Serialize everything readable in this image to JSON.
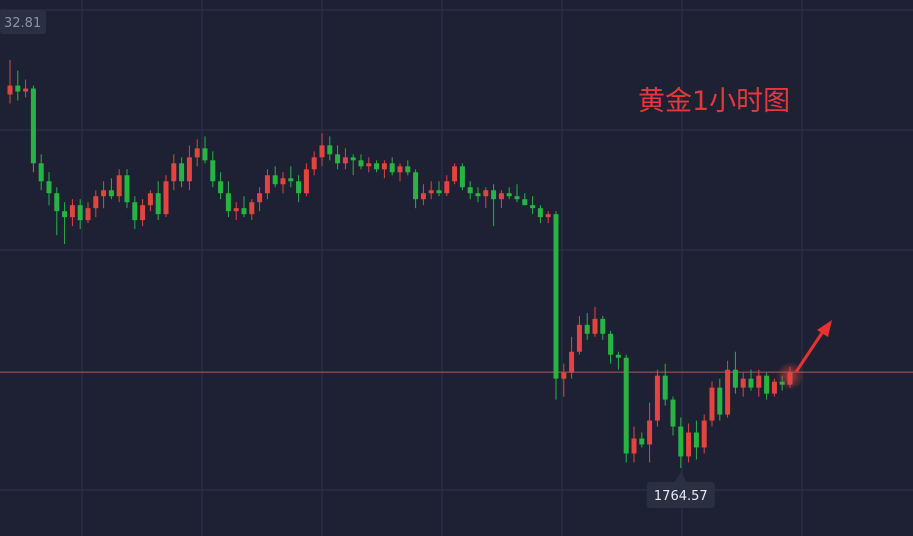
{
  "chart_data": {
    "type": "candlestick",
    "title": "黄金1小时图",
    "corner_label": "32.81",
    "low_label": "1764.57",
    "last_price": 1780.6,
    "up_color": "#e2453f",
    "down_color": "#28b443",
    "ylim": [
      1753.2,
      1842.8
    ],
    "ohlc": [
      [
        1827.0,
        1832.8,
        1825.5,
        1828.5
      ],
      [
        1828.5,
        1831.0,
        1826.0,
        1827.5
      ],
      [
        1827.5,
        1829.5,
        1826.5,
        1828.0
      ],
      [
        1828.0,
        1828.5,
        1814.0,
        1815.5
      ],
      [
        1815.5,
        1817.0,
        1811.0,
        1812.5
      ],
      [
        1812.5,
        1814.0,
        1808.5,
        1810.5
      ],
      [
        1810.5,
        1811.5,
        1803.5,
        1807.5
      ],
      [
        1807.5,
        1809.0,
        1802.0,
        1806.5
      ],
      [
        1806.5,
        1809.5,
        1805.0,
        1808.5
      ],
      [
        1808.5,
        1809.5,
        1804.5,
        1806.0
      ],
      [
        1806.0,
        1809.0,
        1805.5,
        1808.0
      ],
      [
        1808.0,
        1811.0,
        1806.5,
        1810.0
      ],
      [
        1810.0,
        1812.5,
        1808.0,
        1811.0
      ],
      [
        1811.0,
        1813.0,
        1809.5,
        1810.0
      ],
      [
        1810.0,
        1814.5,
        1809.0,
        1813.5
      ],
      [
        1813.5,
        1814.5,
        1808.0,
        1809.0
      ],
      [
        1809.0,
        1810.0,
        1804.5,
        1806.0
      ],
      [
        1806.0,
        1809.5,
        1805.0,
        1808.5
      ],
      [
        1808.5,
        1811.0,
        1807.5,
        1810.5
      ],
      [
        1810.5,
        1812.5,
        1806.0,
        1807.0
      ],
      [
        1807.0,
        1813.5,
        1806.5,
        1812.5
      ],
      [
        1812.5,
        1817.0,
        1811.0,
        1815.5
      ],
      [
        1815.5,
        1816.5,
        1811.5,
        1812.5
      ],
      [
        1812.5,
        1818.5,
        1811.0,
        1816.5
      ],
      [
        1816.5,
        1819.5,
        1815.0,
        1818.0
      ],
      [
        1818.0,
        1820.0,
        1815.5,
        1816.0
      ],
      [
        1816.0,
        1817.5,
        1811.5,
        1812.5
      ],
      [
        1812.5,
        1814.0,
        1809.5,
        1810.5
      ],
      [
        1810.5,
        1812.5,
        1806.5,
        1807.5
      ],
      [
        1807.5,
        1809.0,
        1806.0,
        1808.0
      ],
      [
        1808.0,
        1810.0,
        1806.5,
        1807.0
      ],
      [
        1807.0,
        1809.5,
        1806.0,
        1809.0
      ],
      [
        1809.0,
        1811.5,
        1807.5,
        1810.5
      ],
      [
        1810.5,
        1814.5,
        1809.5,
        1813.5
      ],
      [
        1813.5,
        1815.0,
        1811.5,
        1812.0
      ],
      [
        1812.0,
        1814.0,
        1810.5,
        1813.0
      ],
      [
        1813.0,
        1815.0,
        1811.5,
        1812.5
      ],
      [
        1812.5,
        1813.5,
        1809.0,
        1810.5
      ],
      [
        1810.5,
        1815.5,
        1810.0,
        1814.5
      ],
      [
        1814.5,
        1817.5,
        1813.5,
        1816.5
      ],
      [
        1816.5,
        1820.5,
        1815.0,
        1818.5
      ],
      [
        1818.5,
        1820.0,
        1816.0,
        1817.0
      ],
      [
        1817.0,
        1818.5,
        1814.5,
        1815.5
      ],
      [
        1815.5,
        1818.0,
        1814.5,
        1816.5
      ],
      [
        1816.5,
        1817.0,
        1813.5,
        1816.0
      ],
      [
        1816.0,
        1817.0,
        1814.5,
        1815.0
      ],
      [
        1815.0,
        1816.5,
        1814.0,
        1815.5
      ],
      [
        1815.5,
        1816.0,
        1814.0,
        1814.5
      ],
      [
        1814.5,
        1816.0,
        1813.0,
        1815.5
      ],
      [
        1815.5,
        1816.5,
        1813.5,
        1814.0
      ],
      [
        1814.0,
        1815.5,
        1812.5,
        1815.0
      ],
      [
        1815.0,
        1816.0,
        1813.5,
        1814.0
      ],
      [
        1814.0,
        1814.5,
        1808.0,
        1809.5
      ],
      [
        1809.5,
        1812.0,
        1808.5,
        1810.5
      ],
      [
        1810.5,
        1812.5,
        1809.5,
        1811.0
      ],
      [
        1811.0,
        1812.5,
        1810.0,
        1810.5
      ],
      [
        1810.5,
        1813.5,
        1810.0,
        1812.5
      ],
      [
        1812.5,
        1815.5,
        1812.0,
        1815.0
      ],
      [
        1815.0,
        1815.5,
        1811.0,
        1811.5
      ],
      [
        1811.5,
        1812.5,
        1809.5,
        1810.5
      ],
      [
        1810.5,
        1811.5,
        1809.0,
        1810.0
      ],
      [
        1810.0,
        1811.5,
        1808.0,
        1811.0
      ],
      [
        1811.0,
        1812.0,
        1805.0,
        1809.5
      ],
      [
        1809.5,
        1811.0,
        1808.0,
        1810.5
      ],
      [
        1810.5,
        1811.5,
        1809.5,
        1810.0
      ],
      [
        1810.0,
        1812.0,
        1809.0,
        1809.5
      ],
      [
        1809.5,
        1810.5,
        1808.5,
        1808.5
      ],
      [
        1808.5,
        1810.0,
        1807.0,
        1808.0
      ],
      [
        1808.0,
        1808.5,
        1805.5,
        1806.5
      ],
      [
        1806.5,
        1807.5,
        1805.5,
        1807.0
      ],
      [
        1807.0,
        1807.5,
        1776.0,
        1779.5
      ],
      [
        1779.5,
        1782.0,
        1776.5,
        1780.5
      ],
      [
        1780.5,
        1786.5,
        1779.5,
        1784.0
      ],
      [
        1784.0,
        1790.0,
        1783.5,
        1788.5
      ],
      [
        1788.5,
        1790.5,
        1786.0,
        1787.0
      ],
      [
        1787.0,
        1791.5,
        1786.5,
        1789.5
      ],
      [
        1789.5,
        1790.0,
        1786.0,
        1787.0
      ],
      [
        1787.0,
        1787.5,
        1782.0,
        1783.5
      ],
      [
        1783.5,
        1784.0,
        1781.0,
        1783.0
      ],
      [
        1783.0,
        1783.5,
        1765.5,
        1767.0
      ],
      [
        1767.0,
        1771.5,
        1765.5,
        1769.5
      ],
      [
        1769.5,
        1770.5,
        1768.0,
        1768.5
      ],
      [
        1768.5,
        1775.5,
        1765.5,
        1772.5
      ],
      [
        1772.5,
        1781.0,
        1771.5,
        1780.0
      ],
      [
        1780.0,
        1782.0,
        1775.0,
        1776.0
      ],
      [
        1776.0,
        1776.5,
        1770.0,
        1771.5
      ],
      [
        1771.5,
        1773.0,
        1764.57,
        1766.5
      ],
      [
        1766.5,
        1772.0,
        1765.5,
        1770.5
      ],
      [
        1770.5,
        1772.5,
        1766.0,
        1768.0
      ],
      [
        1768.0,
        1773.5,
        1767.0,
        1772.5
      ],
      [
        1772.5,
        1779.0,
        1771.5,
        1778.0
      ],
      [
        1778.0,
        1779.5,
        1772.5,
        1773.5
      ],
      [
        1773.5,
        1782.5,
        1773.0,
        1781.0
      ],
      [
        1781.0,
        1784.0,
        1777.0,
        1778.0
      ],
      [
        1778.0,
        1780.5,
        1776.5,
        1779.5
      ],
      [
        1779.5,
        1781.0,
        1777.5,
        1778.0
      ],
      [
        1778.0,
        1781.0,
        1776.5,
        1780.0
      ],
      [
        1780.0,
        1780.5,
        1776.0,
        1777.0
      ],
      [
        1777.0,
        1779.5,
        1776.5,
        1779.0
      ],
      [
        1779.0,
        1780.0,
        1777.5,
        1778.5
      ],
      [
        1778.5,
        1781.5,
        1778.0,
        1780.6
      ]
    ]
  }
}
